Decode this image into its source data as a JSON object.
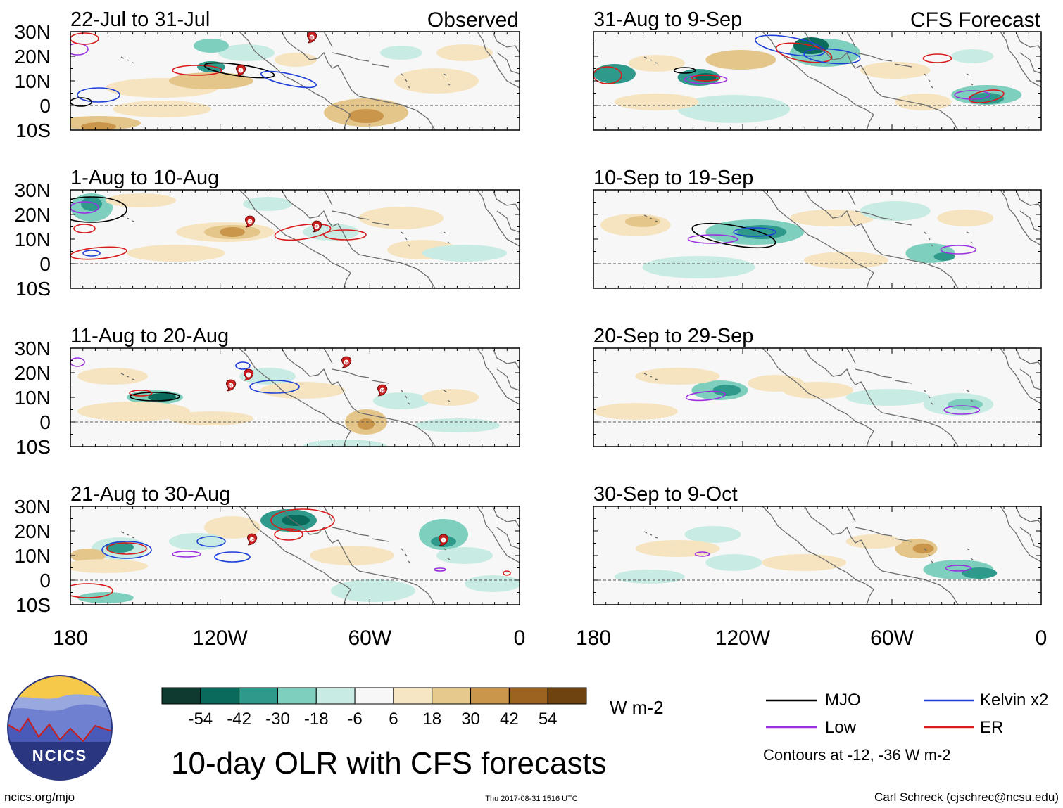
{
  "title": "10-day OLR with CFS forecasts",
  "units": "W m-2",
  "colorbar": {
    "colors": [
      "#0e3a2f",
      "#0a6a5c",
      "#2f9a8b",
      "#7fcfbe",
      "#c8ece3",
      "#f7f7f7",
      "#f7e6c4",
      "#e5c98d",
      "#c9964b",
      "#9c6220",
      "#6e4310"
    ],
    "labels": [
      "-54",
      "-42",
      "-30",
      "-18",
      "-6",
      "6",
      "18",
      "30",
      "42",
      "54"
    ]
  },
  "left_column_header": "Observed",
  "right_column_header": "CFS Forecast",
  "panels": {
    "left": [
      {
        "label": "22-Jul to 31-Jul"
      },
      {
        "label": "1-Aug to 10-Aug"
      },
      {
        "label": "11-Aug to 20-Aug"
      },
      {
        "label": "21-Aug to 30-Aug"
      }
    ],
    "right": [
      {
        "label": "31-Aug to 9-Sep"
      },
      {
        "label": "10-Sep to 19-Sep"
      },
      {
        "label": "20-Sep to 29-Sep"
      },
      {
        "label": "30-Sep to 9-Oct"
      }
    ]
  },
  "lat_labels": [
    "30N",
    "20N",
    "10N",
    "0",
    "10S"
  ],
  "lon_labels": [
    "180",
    "120W",
    "60W",
    "0"
  ],
  "storm_markers": {
    "p0": [
      "E",
      "I"
    ],
    "p1": [
      "11",
      "F"
    ],
    "p2": [
      "G",
      "J",
      "K",
      "H"
    ],
    "p3": [
      "14",
      "I"
    ]
  },
  "legend": {
    "mjo": "MJO",
    "kelvin": "Kelvin x2",
    "low": "Low",
    "er": "ER",
    "contours": "Contours at -12, -36 W m-2",
    "colors": {
      "mjo": "#000000",
      "kelvin": "#1d3fd8",
      "low": "#9b30e0",
      "er": "#d81c1c"
    }
  },
  "logo": {
    "text": "NCICS"
  },
  "footer": {
    "left": "ncics.org/mjo",
    "timestamp": "Thu 2017-08-31 1516 UTC",
    "right": "Carl Schreck (cjschrec@ncsu.edu)"
  }
}
